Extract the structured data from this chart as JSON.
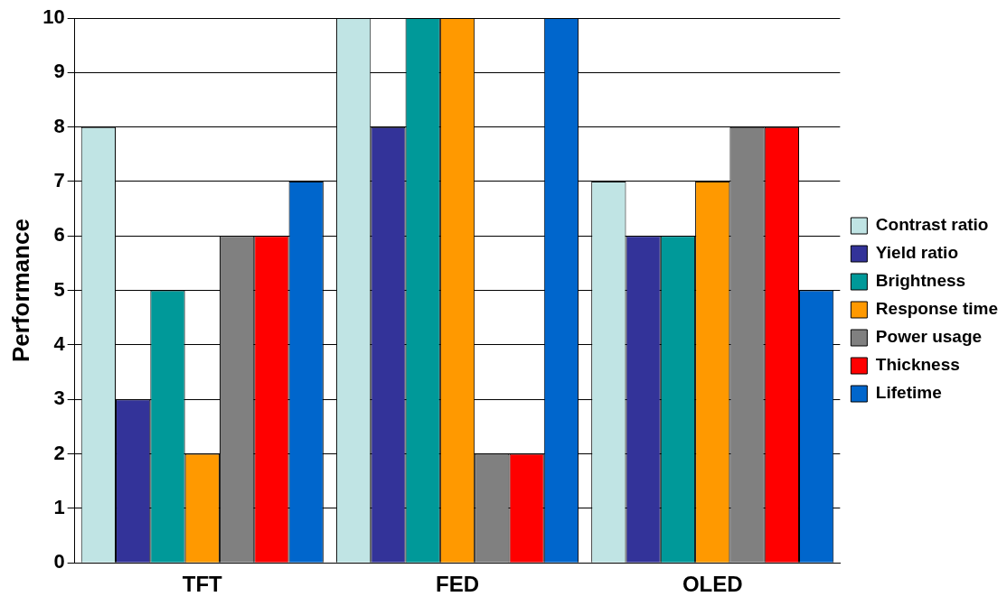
{
  "chart_data": {
    "type": "bar",
    "ylabel": "Performance",
    "categories": [
      "TFT",
      "FED",
      "OLED"
    ],
    "series": [
      {
        "name": "Contrast ratio",
        "color": "#c0e4e4",
        "values": [
          8,
          10,
          7
        ]
      },
      {
        "name": "Yield ratio",
        "color": "#333399",
        "values": [
          3,
          8,
          6
        ]
      },
      {
        "name": "Brightness",
        "color": "#009999",
        "values": [
          5,
          10,
          6
        ]
      },
      {
        "name": "Response time",
        "color": "#ff9900",
        "values": [
          2,
          10,
          7
        ]
      },
      {
        "name": "Power usage",
        "color": "#808080",
        "values": [
          6,
          2,
          8
        ]
      },
      {
        "name": "Thickness",
        "color": "#ff0000",
        "values": [
          6,
          2,
          8
        ]
      },
      {
        "name": "Lifetime",
        "color": "#0066cc",
        "values": [
          7,
          10,
          5
        ]
      }
    ],
    "ylim": [
      0,
      10
    ],
    "yticks": [
      0,
      1,
      2,
      3,
      4,
      5,
      6,
      7,
      8,
      9,
      10
    ],
    "grid": "y",
    "legend": "right"
  }
}
